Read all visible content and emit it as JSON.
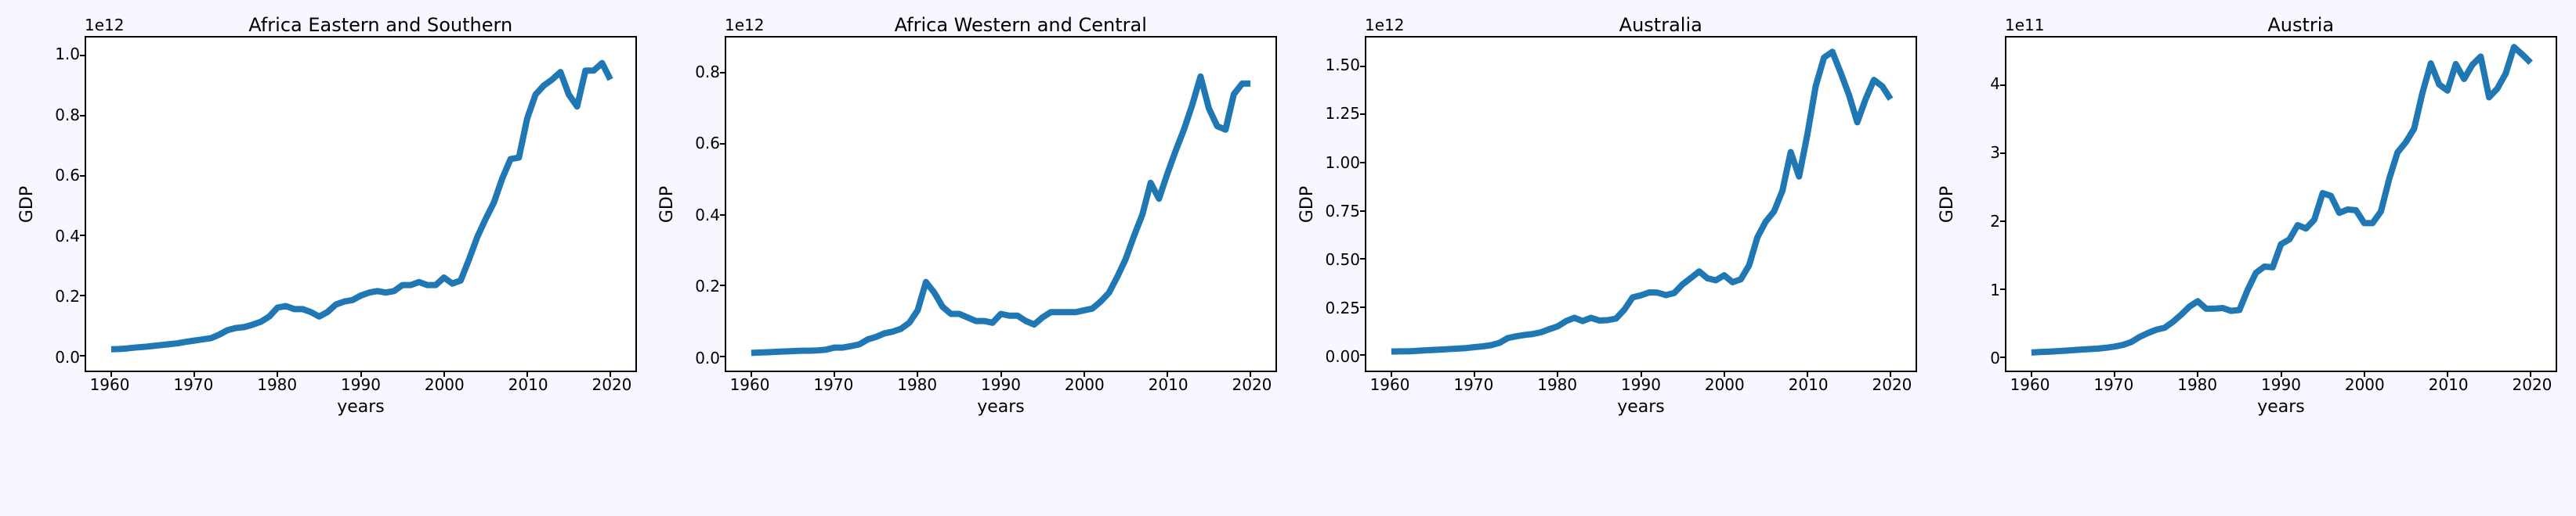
{
  "figure": {
    "background_color": "#f7f8ff",
    "axes_facecolor": "#ffffff",
    "spine_color": "#000000",
    "line_color": "#1f77b4",
    "line_width": 3,
    "font_family": "DejaVu Sans",
    "title_fontsize": 24,
    "label_fontsize": 22,
    "tick_fontsize": 20,
    "panel_count": 4
  },
  "common": {
    "xlabel": "years",
    "ylabel": "GDP",
    "xlim": [
      1957,
      2023
    ],
    "xticks": [
      1960,
      1970,
      1980,
      1990,
      2000,
      2010,
      2020
    ],
    "xtick_labels": [
      "1960",
      "1970",
      "1980",
      "1990",
      "2000",
      "2010",
      "2020"
    ]
  },
  "panels": [
    {
      "title": "Africa Eastern and Southern",
      "offset_text": "1e12",
      "ylim": [
        -0.05,
        1.06
      ],
      "yticks": [
        0.0,
        0.2,
        0.4,
        0.6,
        0.8,
        1.0
      ],
      "ytick_labels": [
        "0.0",
        "0.2",
        "0.4",
        "0.6",
        "0.8",
        "1.0"
      ],
      "x": [
        1960,
        1961,
        1962,
        1963,
        1964,
        1965,
        1966,
        1967,
        1968,
        1969,
        1970,
        1971,
        1972,
        1973,
        1974,
        1975,
        1976,
        1977,
        1978,
        1979,
        1980,
        1981,
        1982,
        1983,
        1984,
        1985,
        1986,
        1987,
        1988,
        1989,
        1990,
        1991,
        1992,
        1993,
        1994,
        1995,
        1996,
        1997,
        1998,
        1999,
        2000,
        2001,
        2002,
        2003,
        2004,
        2005,
        2006,
        2007,
        2008,
        2009,
        2010,
        2011,
        2012,
        2013,
        2014,
        2015,
        2016,
        2017,
        2018,
        2019,
        2020
      ],
      "y": [
        0.021,
        0.022,
        0.024,
        0.027,
        0.029,
        0.032,
        0.035,
        0.038,
        0.041,
        0.046,
        0.05,
        0.054,
        0.058,
        0.07,
        0.085,
        0.092,
        0.095,
        0.103,
        0.113,
        0.13,
        0.16,
        0.165,
        0.155,
        0.155,
        0.145,
        0.13,
        0.145,
        0.17,
        0.18,
        0.185,
        0.2,
        0.21,
        0.215,
        0.21,
        0.215,
        0.235,
        0.235,
        0.245,
        0.235,
        0.235,
        0.26,
        0.24,
        0.25,
        0.32,
        0.395,
        0.455,
        0.51,
        0.59,
        0.655,
        0.66,
        0.79,
        0.87,
        0.9,
        0.92,
        0.945,
        0.87,
        0.83,
        0.95,
        0.95,
        0.975,
        0.92
      ]
    },
    {
      "title": "Africa Western and Central",
      "offset_text": "1e12",
      "ylim": [
        -0.04,
        0.9
      ],
      "yticks": [
        0.0,
        0.2,
        0.4,
        0.6,
        0.8
      ],
      "ytick_labels": [
        "0.0",
        "0.2",
        "0.4",
        "0.6",
        "0.8"
      ],
      "x": [
        1960,
        1961,
        1962,
        1963,
        1964,
        1965,
        1966,
        1967,
        1968,
        1969,
        1970,
        1971,
        1972,
        1973,
        1974,
        1975,
        1976,
        1977,
        1978,
        1979,
        1980,
        1981,
        1982,
        1983,
        1984,
        1985,
        1986,
        1987,
        1988,
        1989,
        1990,
        1991,
        1992,
        1993,
        1994,
        1995,
        1996,
        1997,
        1998,
        1999,
        2000,
        2001,
        2002,
        2003,
        2004,
        2005,
        2006,
        2007,
        2008,
        2009,
        2010,
        2011,
        2012,
        2013,
        2014,
        2015,
        2016,
        2017,
        2018,
        2019,
        2020
      ],
      "y": [
        0.01,
        0.011,
        0.012,
        0.013,
        0.014,
        0.015,
        0.016,
        0.016,
        0.017,
        0.019,
        0.025,
        0.025,
        0.029,
        0.034,
        0.048,
        0.055,
        0.065,
        0.07,
        0.078,
        0.095,
        0.13,
        0.21,
        0.18,
        0.14,
        0.12,
        0.12,
        0.11,
        0.1,
        0.1,
        0.095,
        0.12,
        0.115,
        0.115,
        0.1,
        0.09,
        0.11,
        0.125,
        0.125,
        0.125,
        0.125,
        0.13,
        0.135,
        0.155,
        0.18,
        0.225,
        0.275,
        0.34,
        0.4,
        0.49,
        0.445,
        0.515,
        0.58,
        0.64,
        0.71,
        0.79,
        0.7,
        0.65,
        0.64,
        0.74,
        0.77,
        0.77
      ]
    },
    {
      "title": "Australia",
      "offset_text": "1e12",
      "ylim": [
        -0.08,
        1.65
      ],
      "yticks": [
        0.0,
        0.25,
        0.5,
        0.75,
        1.0,
        1.25,
        1.5
      ],
      "ytick_labels": [
        "0.00",
        "0.25",
        "0.50",
        "0.75",
        "1.00",
        "1.25",
        "1.50"
      ],
      "x": [
        1960,
        1961,
        1962,
        1963,
        1964,
        1965,
        1966,
        1967,
        1968,
        1969,
        1970,
        1971,
        1972,
        1973,
        1974,
        1975,
        1976,
        1977,
        1978,
        1979,
        1980,
        1981,
        1982,
        1983,
        1984,
        1985,
        1986,
        1987,
        1988,
        1989,
        1990,
        1991,
        1992,
        1993,
        1994,
        1995,
        1996,
        1997,
        1998,
        1999,
        2000,
        2001,
        2002,
        2003,
        2004,
        2005,
        2006,
        2007,
        2008,
        2009,
        2010,
        2011,
        2012,
        2013,
        2014,
        2015,
        2016,
        2017,
        2018,
        2019,
        2020
      ],
      "y": [
        0.019,
        0.02,
        0.02,
        0.022,
        0.025,
        0.027,
        0.029,
        0.032,
        0.034,
        0.037,
        0.042,
        0.046,
        0.052,
        0.064,
        0.089,
        0.098,
        0.105,
        0.11,
        0.119,
        0.135,
        0.15,
        0.177,
        0.194,
        0.177,
        0.194,
        0.18,
        0.182,
        0.19,
        0.236,
        0.3,
        0.311,
        0.326,
        0.325,
        0.312,
        0.323,
        0.368,
        0.401,
        0.435,
        0.399,
        0.389,
        0.415,
        0.379,
        0.394,
        0.467,
        0.613,
        0.694,
        0.747,
        0.854,
        1.055,
        0.928,
        1.146,
        1.397,
        1.546,
        1.576,
        1.468,
        1.352,
        1.21,
        1.33,
        1.43,
        1.397,
        1.33
      ]
    },
    {
      "title": "Austria",
      "offset_text": "1e11",
      "ylim": [
        -0.2,
        4.7
      ],
      "yticks": [
        0,
        1,
        2,
        3,
        4
      ],
      "ytick_labels": [
        "0",
        "1",
        "2",
        "3",
        "4"
      ],
      "x": [
        1960,
        1961,
        1962,
        1963,
        1964,
        1965,
        1966,
        1967,
        1968,
        1969,
        1970,
        1971,
        1972,
        1973,
        1974,
        1975,
        1976,
        1977,
        1978,
        1979,
        1980,
        1981,
        1982,
        1983,
        1984,
        1985,
        1986,
        1987,
        1988,
        1989,
        1990,
        1991,
        1992,
        1993,
        1994,
        1995,
        1996,
        1997,
        1998,
        1999,
        2000,
        2001,
        2002,
        2003,
        2004,
        2005,
        2006,
        2007,
        2008,
        2009,
        2010,
        2011,
        2012,
        2013,
        2014,
        2015,
        2016,
        2017,
        2018,
        2019,
        2020
      ],
      "y": [
        0.066,
        0.073,
        0.078,
        0.084,
        0.092,
        0.1,
        0.109,
        0.116,
        0.124,
        0.136,
        0.153,
        0.178,
        0.22,
        0.295,
        0.352,
        0.401,
        0.43,
        0.516,
        0.622,
        0.742,
        0.82,
        0.71,
        0.711,
        0.72,
        0.678,
        0.692,
        0.99,
        1.24,
        1.33,
        1.32,
        1.66,
        1.73,
        1.94,
        1.89,
        2.02,
        2.41,
        2.37,
        2.12,
        2.17,
        2.16,
        1.97,
        1.97,
        2.14,
        2.62,
        3.01,
        3.16,
        3.36,
        3.89,
        4.32,
        4.01,
        3.92,
        4.31,
        4.09,
        4.3,
        4.42,
        3.82,
        3.95,
        4.17,
        4.56,
        4.45,
        4.33
      ]
    }
  ]
}
